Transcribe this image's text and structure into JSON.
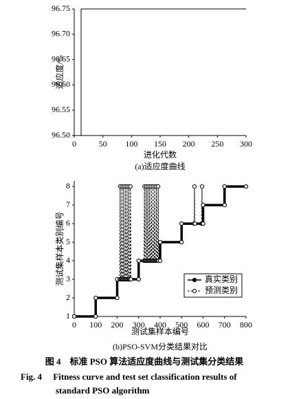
{
  "chart_data": [
    {
      "type": "line",
      "ylabel": "适应度/%",
      "xlabel": "进化代数",
      "caption": "(a)适应度曲线",
      "x": [
        0,
        12,
        12,
        300
      ],
      "values": [
        96.5,
        96.5,
        96.75,
        96.75
      ],
      "color": "#000000",
      "xlim": [
        0,
        300
      ],
      "xticks": [
        0,
        50,
        100,
        150,
        200,
        250,
        300
      ],
      "ylim": [
        96.5,
        96.75
      ],
      "yticks": [
        {
          "value": 96.5,
          "label": "96.50"
        },
        {
          "value": 96.55,
          "label": "96.55"
        },
        {
          "value": 96.6,
          "label": "96.60"
        },
        {
          "value": 96.65,
          "label": "96.65"
        },
        {
          "value": 96.7,
          "label": "96.70"
        },
        {
          "value": 96.75,
          "label": "96.75"
        }
      ]
    },
    {
      "type": "line",
      "ylabel": "测试集样本类别编号",
      "xlabel": "测试集样本编号",
      "caption": "(b)PSO-SVM分类结果对比",
      "legend": "lower-right",
      "series": [
        {
          "name": "真实类别",
          "color": "#000000",
          "linestyle": "solid",
          "marker": "filled-circle",
          "x": [
            0,
            100,
            100,
            200,
            200,
            300,
            300,
            400,
            400,
            500,
            500,
            600,
            600,
            700,
            700,
            800
          ],
          "values": [
            1,
            1,
            2,
            2,
            3,
            3,
            4,
            4,
            5,
            5,
            6,
            6,
            7,
            7,
            8,
            8
          ]
        },
        {
          "name": "预测类别",
          "color": "#000000",
          "linestyle": "dashed",
          "marker": "open-circle",
          "x": [
            0,
            100,
            100,
            200,
            200,
            212,
            214,
            216,
            220,
            222,
            224,
            228,
            230,
            232,
            236,
            238,
            240,
            244,
            246,
            248,
            252,
            254,
            256,
            260,
            262,
            264,
            300,
            300,
            325,
            327,
            329,
            333,
            335,
            337,
            341,
            343,
            345,
            349,
            351,
            353,
            357,
            359,
            361,
            365,
            367,
            369,
            373,
            375,
            377,
            381,
            383,
            385,
            389,
            391,
            393,
            400,
            400,
            500,
            500,
            558,
            560,
            562,
            593,
            595,
            597,
            600,
            600,
            700,
            700,
            800
          ],
          "values": [
            1,
            1,
            2,
            2,
            3,
            3,
            8,
            3,
            3,
            8,
            3,
            3,
            8,
            3,
            3,
            8,
            3,
            3,
            8,
            3,
            3,
            8,
            3,
            3,
            8,
            3,
            3,
            4,
            4,
            8,
            4,
            4,
            8,
            4,
            4,
            8,
            4,
            4,
            8,
            4,
            4,
            8,
            4,
            4,
            8,
            4,
            4,
            8,
            4,
            4,
            8,
            4,
            4,
            8,
            4,
            4,
            5,
            5,
            6,
            6,
            8,
            6,
            6,
            8,
            6,
            6,
            7,
            7,
            8,
            8
          ]
        }
      ],
      "xlim": [
        0,
        800
      ],
      "xticks": [
        0,
        100,
        200,
        300,
        400,
        500,
        600,
        700,
        800
      ],
      "ylim": [
        1,
        8.3
      ],
      "yticks": [
        1,
        2,
        3,
        4,
        5,
        6,
        7,
        8
      ]
    }
  ],
  "figure_caption": {
    "zh": "图 4　标准 PSO 算法适应度曲线与测试集分类结果",
    "en": [
      "Fig. 4　 Fitness curve and test set classification results of",
      "standard PSO algorithm"
    ]
  }
}
